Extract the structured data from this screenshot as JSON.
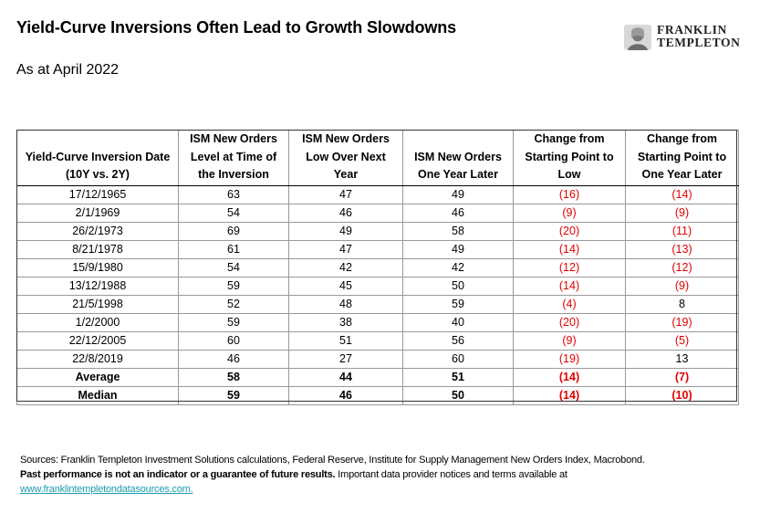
{
  "title": "Yield-Curve Inversions Often Lead to Growth Slowdowns",
  "subtitle": "As at April 2022",
  "logo": {
    "line1": "FRANKLIN",
    "line2": "TEMPLETON",
    "icon": "franklin-portrait-icon"
  },
  "table": {
    "headers": [
      [
        "Yield-Curve Inversion Date",
        "(10Y vs. 2Y)"
      ],
      [
        "ISM New Orders",
        "Level at Time of",
        "the Inversion"
      ],
      [
        "ISM New Orders",
        "Low Over Next",
        "Year"
      ],
      [
        "ISM New Orders",
        "One Year Later"
      ],
      [
        "Change from",
        "Starting Point to",
        "Low"
      ],
      [
        "Change from",
        "Starting Point to",
        "One Year Later"
      ]
    ],
    "rows": [
      [
        "17/12/1965",
        "63",
        "47",
        "49",
        "(16)",
        "(14)"
      ],
      [
        "2/1/1969",
        "54",
        "46",
        "46",
        "(9)",
        "(9)"
      ],
      [
        "26/2/1973",
        "69",
        "49",
        "58",
        "(20)",
        "(11)"
      ],
      [
        "8/21/1978",
        "61",
        "47",
        "49",
        "(14)",
        "(13)"
      ],
      [
        "15/9/1980",
        "54",
        "42",
        "42",
        "(12)",
        "(12)"
      ],
      [
        "13/12/1988",
        "59",
        "45",
        "50",
        "(14)",
        "(9)"
      ],
      [
        "21/5/1998",
        "52",
        "48",
        "59",
        "(4)",
        "8"
      ],
      [
        "1/2/2000",
        "59",
        "38",
        "40",
        "(20)",
        "(19)"
      ],
      [
        "22/12/2005",
        "60",
        "51",
        "56",
        "(9)",
        "(5)"
      ],
      [
        "22/8/2019",
        "46",
        "27",
        "60",
        "(19)",
        "13"
      ]
    ],
    "summary": [
      [
        "Average",
        "58",
        "44",
        "51",
        "(14)",
        "(7)"
      ],
      [
        "Median",
        "59",
        "46",
        "50",
        "(14)",
        "(10)"
      ]
    ]
  },
  "footer": {
    "sources": "Sources: Franklin Templeton Investment Solutions calculations, Federal Reserve, Institute for Supply Management New Orders Index, Macrobond.",
    "disclaimer_bold": "Past performance is not an indicator or a guarantee of future results.",
    "disclaimer_rest": " Important data provider notices and terms available at",
    "link": "www.franklintempletondatasources.com."
  },
  "colors": {
    "negative": "#e00000",
    "link": "#1a9bb0",
    "border": "#999999"
  }
}
